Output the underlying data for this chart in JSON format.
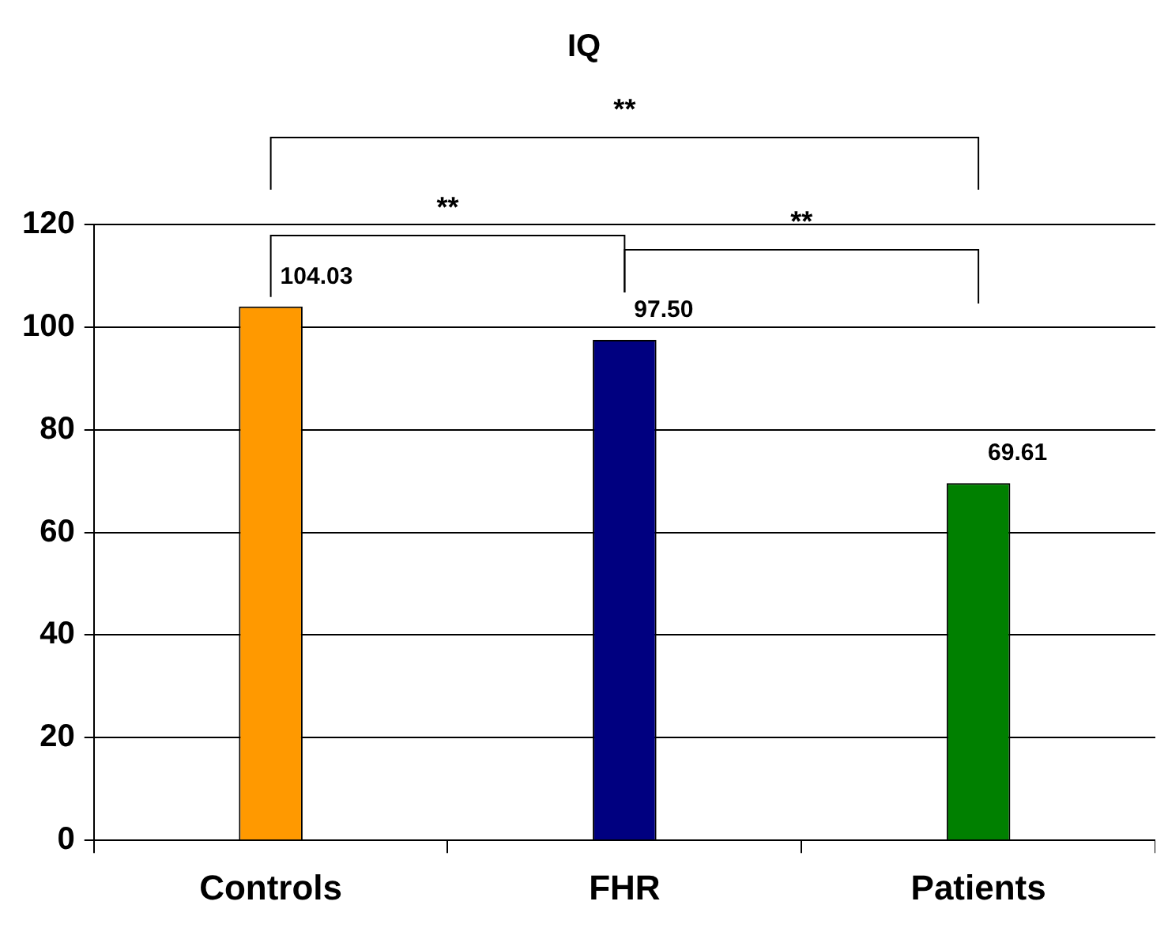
{
  "chart_data": {
    "type": "bar",
    "title": "IQ",
    "categories": [
      "Controls",
      "FHR",
      "Patients"
    ],
    "values": [
      104.03,
      97.5,
      69.61
    ],
    "colors": [
      "#ff9900",
      "#000080",
      "#008000"
    ],
    "value_labels": [
      "104.03",
      "97.50",
      "69.61"
    ],
    "ylim": [
      0,
      120
    ],
    "yticks": [
      0,
      20,
      40,
      60,
      80,
      100,
      120
    ],
    "grid": "y",
    "legend": false,
    "annotations": [
      "**",
      "**",
      "**"
    ]
  }
}
